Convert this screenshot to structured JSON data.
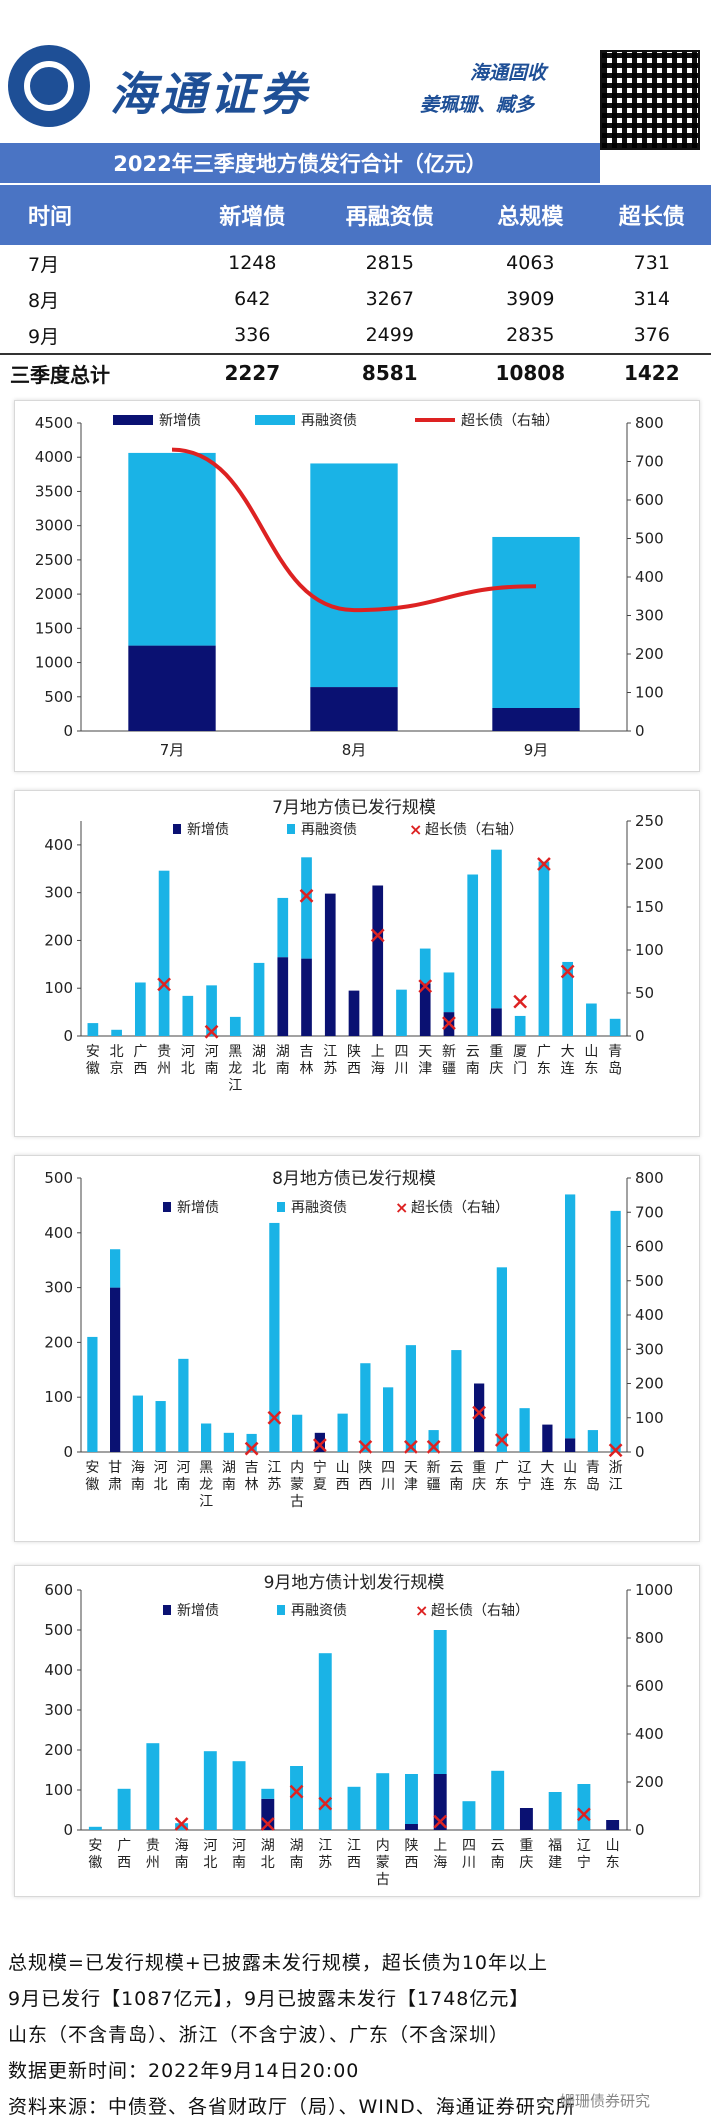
{
  "header": {
    "brand": "海通证券",
    "team": "海通固收",
    "authors": "姜珮珊、臧多"
  },
  "summary_table": {
    "title": "2022年三季度地方债发行合计（亿元）",
    "headers": [
      "时间",
      "新增债",
      "再融资债",
      "总规模",
      "超长债"
    ],
    "rows": [
      [
        "7月",
        "1248",
        "2815",
        "4063",
        "731"
      ],
      [
        "8月",
        "642",
        "3267",
        "3909",
        "314"
      ],
      [
        "9月",
        "336",
        "2499",
        "2835",
        "376"
      ]
    ],
    "total": [
      "三季度总计",
      "2227",
      "8581",
      "10808",
      "1422"
    ]
  },
  "colors": {
    "new_debt": "#0a1172",
    "refinance": "#1ab3e6",
    "ultra_long": "#dd2222",
    "header_blue": "#4a74c4"
  },
  "chart_data": [
    {
      "type": "bar",
      "stacked": true,
      "categories": [
        "7月",
        "8月",
        "9月"
      ],
      "series": [
        {
          "name": "新增债",
          "values": [
            1248,
            642,
            336
          ]
        },
        {
          "name": "再融资债",
          "values": [
            2815,
            3267,
            2499
          ]
        },
        {
          "name": "超长债（右轴）",
          "type": "line",
          "axis": "right",
          "values": [
            731,
            314,
            376
          ]
        }
      ],
      "ylim": [
        0,
        4500
      ],
      "y_ticks": [
        0,
        500,
        1000,
        1500,
        2000,
        2500,
        3000,
        3500,
        4000,
        4500
      ],
      "y2lim": [
        0,
        800
      ],
      "y2_ticks": [
        0,
        100,
        200,
        300,
        400,
        500,
        600,
        700,
        800
      ],
      "legend": "top"
    },
    {
      "type": "bar",
      "stacked": true,
      "title": "7月地方债已发行规模",
      "categories": [
        "安徽",
        "北京",
        "广西",
        "贵州",
        "河北",
        "河南",
        "黑龙江",
        "湖北",
        "湖南",
        "吉林",
        "江苏",
        "陕西",
        "上海",
        "四川",
        "天津",
        "新疆",
        "云南",
        "重庆",
        "厦门",
        "广东",
        "大连",
        "山东",
        "青岛"
      ],
      "series": [
        {
          "name": "新增债",
          "values": [
            0,
            0,
            0,
            0,
            0,
            0,
            0,
            0,
            165,
            162,
            298,
            95,
            315,
            0,
            110,
            50,
            0,
            58,
            0,
            0,
            0,
            0,
            0
          ]
        },
        {
          "name": "再融资债",
          "values": [
            27,
            13,
            112,
            346,
            84,
            106,
            40,
            153,
            124,
            212,
            0,
            0,
            0,
            97,
            73,
            83,
            338,
            332,
            42,
            365,
            155,
            68,
            36
          ]
        },
        {
          "name": "超长债（右轴）",
          "type": "scatter",
          "axis": "right",
          "points": [
            [
              "贵州",
              60
            ],
            [
              "河南",
              5
            ],
            [
              "吉林",
              163
            ],
            [
              "上海",
              117
            ],
            [
              "天津",
              58
            ],
            [
              "新疆",
              15
            ],
            [
              "厦门",
              40
            ],
            [
              "广东",
              200
            ],
            [
              "大连",
              75
            ]
          ]
        }
      ],
      "ylim": [
        0,
        450
      ],
      "y_ticks": [
        0,
        100,
        200,
        300,
        400
      ],
      "y2lim": [
        0,
        250
      ],
      "y2_ticks": [
        0,
        50,
        100,
        150,
        200,
        250
      ],
      "legend": "top"
    },
    {
      "type": "bar",
      "stacked": true,
      "title": "8月地方债已发行规模",
      "categories": [
        "安徽",
        "甘肃",
        "海南",
        "河北",
        "河南",
        "黑龙江",
        "湖南",
        "吉林",
        "江苏",
        "内蒙古",
        "宁夏",
        "山西",
        "陕西",
        "四川",
        "天津",
        "新疆",
        "云南",
        "重庆",
        "广东",
        "辽宁",
        "大连",
        "山东",
        "青岛",
        "浙江"
      ],
      "series": [
        {
          "name": "新增债",
          "values": [
            0,
            300,
            0,
            0,
            0,
            0,
            0,
            0,
            0,
            0,
            35,
            0,
            0,
            0,
            0,
            0,
            0,
            125,
            0,
            0,
            50,
            25,
            0,
            0
          ]
        },
        {
          "name": "再融资债",
          "values": [
            210,
            70,
            103,
            93,
            170,
            52,
            35,
            33,
            418,
            68,
            0,
            70,
            162,
            118,
            195,
            40,
            186,
            0,
            337,
            80,
            0,
            445,
            40,
            440
          ]
        },
        {
          "name": "超长债（右轴）",
          "type": "scatter",
          "axis": "right",
          "points": [
            [
              "吉林",
              10
            ],
            [
              "江苏",
              100
            ],
            [
              "宁夏",
              20
            ],
            [
              "陕西",
              15
            ],
            [
              "天津",
              15
            ],
            [
              "新疆",
              15
            ],
            [
              "重庆",
              115
            ],
            [
              "广东",
              35
            ],
            [
              "浙江",
              5
            ]
          ]
        }
      ],
      "ylim": [
        0,
        500
      ],
      "y_ticks": [
        0,
        100,
        200,
        300,
        400,
        500
      ],
      "y2lim": [
        0,
        800
      ],
      "y2_ticks": [
        0,
        100,
        200,
        300,
        400,
        500,
        600,
        700,
        800
      ],
      "legend": "top"
    },
    {
      "type": "bar",
      "stacked": true,
      "title": "9月地方债计划发行规模",
      "categories": [
        "安徽",
        "广西",
        "贵州",
        "海南",
        "河北",
        "河南",
        "湖北",
        "湖南",
        "江苏",
        "江西",
        "内蒙古",
        "陕西",
        "上海",
        "四川",
        "云南",
        "重庆",
        "福建",
        "辽宁",
        "山东"
      ],
      "series": [
        {
          "name": "新增债",
          "values": [
            0,
            0,
            0,
            0,
            0,
            0,
            78,
            0,
            0,
            0,
            0,
            15,
            140,
            0,
            0,
            55,
            0,
            0,
            25
          ]
        },
        {
          "name": "再融资债",
          "values": [
            8,
            103,
            217,
            17,
            197,
            172,
            25,
            160,
            442,
            108,
            142,
            125,
            360,
            72,
            148,
            0,
            95,
            115,
            0
          ]
        },
        {
          "name": "超长债（右轴）",
          "type": "scatter",
          "axis": "right",
          "points": [
            [
              "海南",
              25
            ],
            [
              "湖北",
              25
            ],
            [
              "湖南",
              160
            ],
            [
              "江苏",
              110
            ],
            [
              "上海",
              35
            ],
            [
              "辽宁",
              65
            ]
          ]
        }
      ],
      "ylim": [
        0,
        600
      ],
      "y_ticks": [
        0,
        100,
        200,
        300,
        400,
        500,
        600
      ],
      "y2lim": [
        0,
        1000
      ],
      "y2_ticks": [
        0,
        200,
        400,
        600,
        800,
        1000
      ],
      "legend": "top"
    }
  ],
  "notes": [
    "总规模=已发行规模+已披露未发行规模，超长债为10年以上",
    "9月已发行【1087亿元】，9月已披露未发行【1748亿元】",
    "山东（不含青岛）、浙江（不含宁波）、广东（不含深圳）",
    "数据更新时间：2022年9月14日20:00",
    "资料来源：中债登、各省财政厅（局）、WIND、海通证券研究所"
  ],
  "watermark": "姗珊债券研究"
}
